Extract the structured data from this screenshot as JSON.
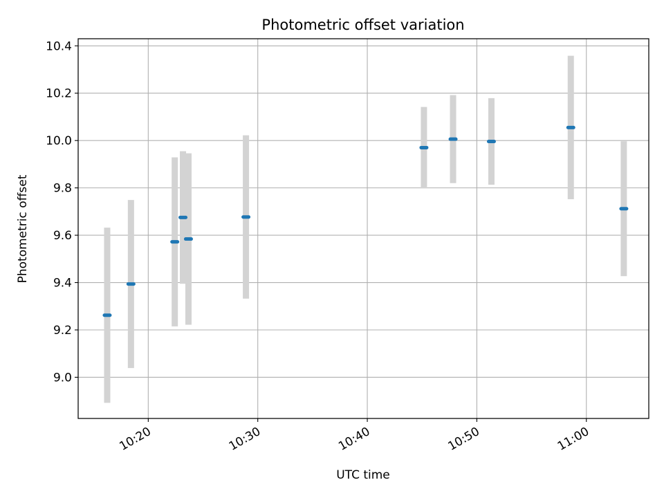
{
  "chart_data": {
    "type": "scatter",
    "title": "Photometric offset variation",
    "xlabel": "UTC time",
    "ylabel": "Photometric offset",
    "xlim_minutes": [
      613.6,
      665.7
    ],
    "ylim": [
      8.826,
      10.43
    ],
    "grid": true,
    "x_ticks": [
      {
        "minutes": 620,
        "label": "10:20"
      },
      {
        "minutes": 630,
        "label": "10:30"
      },
      {
        "minutes": 640,
        "label": "10:40"
      },
      {
        "minutes": 650,
        "label": "10:50"
      },
      {
        "minutes": 660,
        "label": "11:00"
      }
    ],
    "y_ticks": [
      {
        "value": 9.0,
        "label": "9.0"
      },
      {
        "value": 9.2,
        "label": "9.2"
      },
      {
        "value": 9.4,
        "label": "9.4"
      },
      {
        "value": 9.6,
        "label": "9.6"
      },
      {
        "value": 9.8,
        "label": "9.8"
      },
      {
        "value": 10.0,
        "label": "10.0"
      },
      {
        "value": 10.2,
        "label": "10.2"
      },
      {
        "value": 10.4,
        "label": "10.4"
      }
    ],
    "series": [
      {
        "marker_color": "#1f77b4",
        "errorbar_color": "#d3d3d3",
        "points": [
          {
            "time": "10:16:15",
            "minutes": 616.25,
            "y": 9.262,
            "err": 0.37
          },
          {
            "time": "10:18:25",
            "minutes": 618.42,
            "y": 9.394,
            "err": 0.355
          },
          {
            "time": "10:22:25",
            "minutes": 622.42,
            "y": 9.572,
            "err": 0.357
          },
          {
            "time": "10:23:10",
            "minutes": 623.17,
            "y": 9.675,
            "err": 0.28
          },
          {
            "time": "10:23:40",
            "minutes": 623.67,
            "y": 9.584,
            "err": 0.362
          },
          {
            "time": "10:28:55",
            "minutes": 628.92,
            "y": 9.677,
            "err": 0.345
          },
          {
            "time": "10:45:10",
            "minutes": 645.17,
            "y": 9.97,
            "err": 0.172
          },
          {
            "time": "10:47:50",
            "minutes": 647.83,
            "y": 10.006,
            "err": 0.186
          },
          {
            "time": "10:51:20",
            "minutes": 651.33,
            "y": 9.996,
            "err": 0.183
          },
          {
            "time": "10:58:35",
            "minutes": 658.58,
            "y": 10.055,
            "err": 0.303
          },
          {
            "time": "11:03:25",
            "minutes": 663.42,
            "y": 9.712,
            "err": 0.285
          }
        ]
      }
    ]
  }
}
